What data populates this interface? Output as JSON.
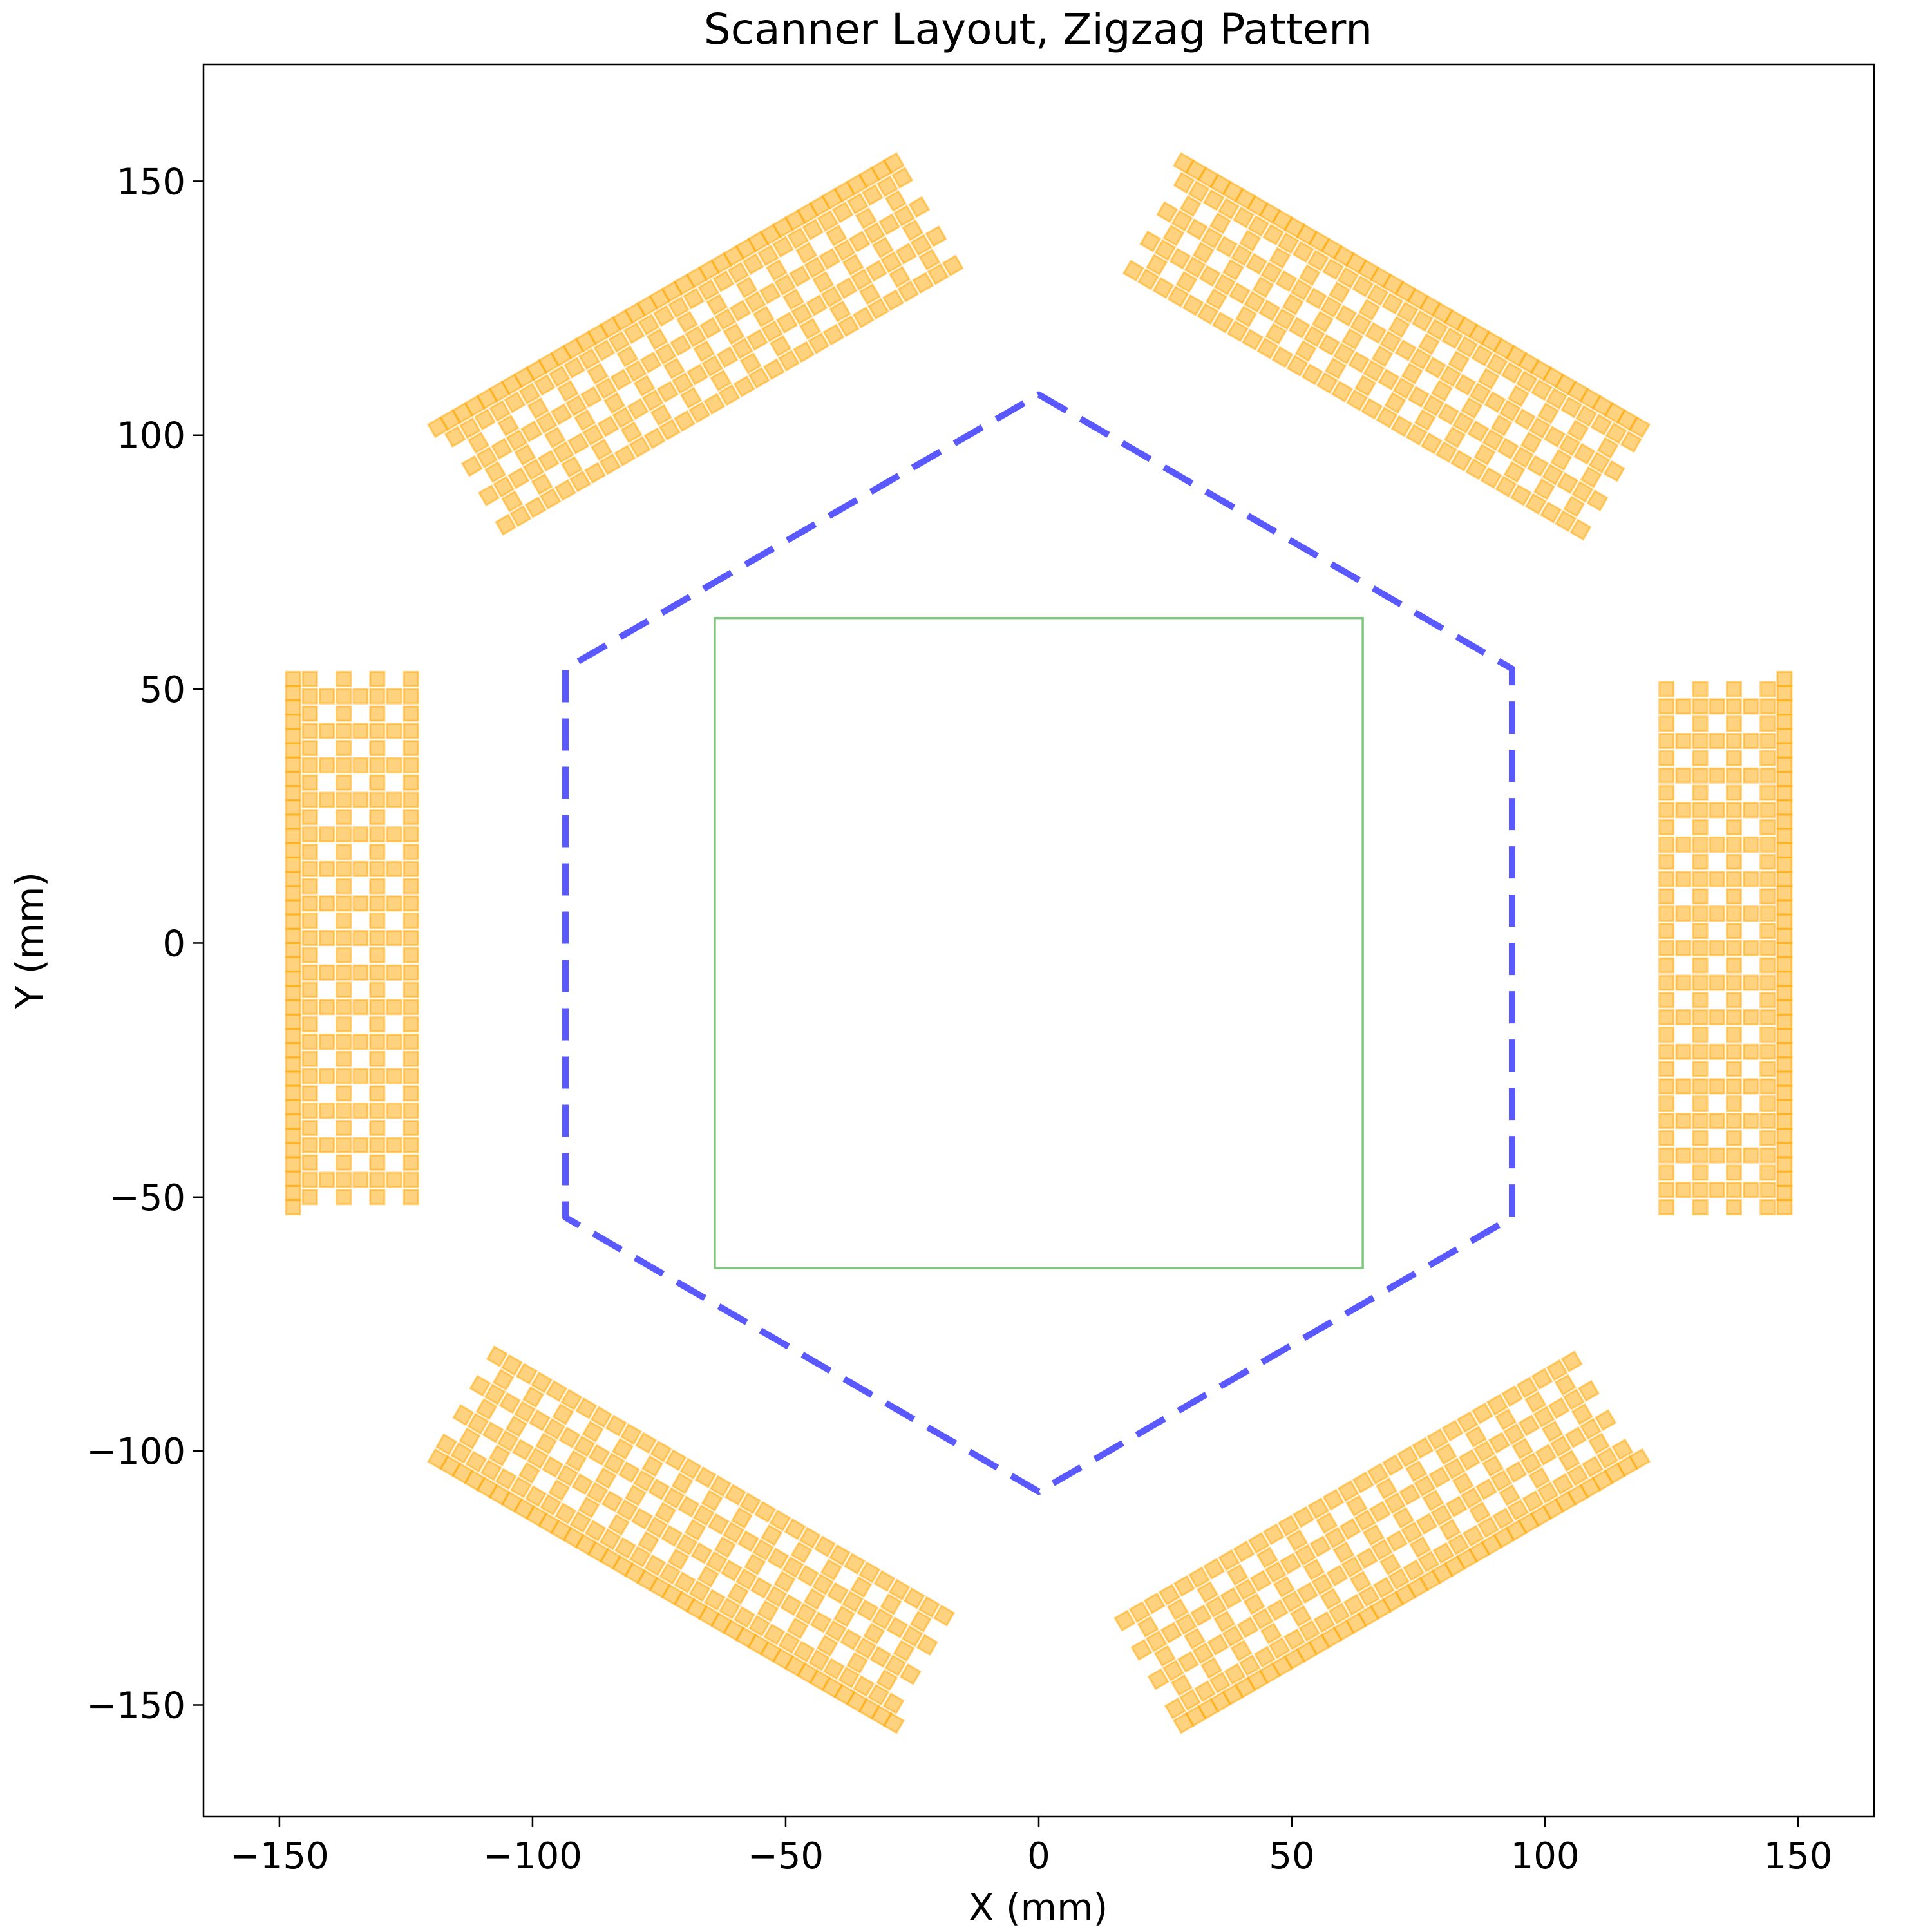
{
  "chart_data": {
    "type": "scatter",
    "title": "Scanner Layout, Zigzag Pattern",
    "xlabel": "X (mm)",
    "ylabel": "Y (mm)",
    "xlim": [
      -165,
      165
    ],
    "ylim": [
      -172,
      173
    ],
    "xticks": [
      -150,
      -100,
      -50,
      0,
      50,
      100,
      150
    ],
    "yticks": [
      -150,
      -100,
      -50,
      0,
      50,
      100,
      150
    ],
    "grid": false,
    "colors": {
      "modules": "#ffa500",
      "ring": "#0000ff",
      "fov": "#2ca02c"
    },
    "hexagon": {
      "style": "dashed",
      "vertices": [
        [
          0,
          108
        ],
        [
          93.5,
          54
        ],
        [
          93.5,
          -54
        ],
        [
          0,
          -108
        ],
        [
          -93.5,
          -54
        ],
        [
          -93.5,
          54
        ]
      ]
    },
    "fov_square": {
      "x": [
        -64,
        64
      ],
      "y": [
        -64,
        64
      ]
    },
    "detector_modules": {
      "count": 6,
      "element_size_mm": 2.8,
      "inner_radius_mm": 124,
      "column_spacing_mm": 3.33,
      "columns": 8,
      "row_pitch_mm": 6.8,
      "rows_per_column": 16,
      "face_span_mm": [
        -52,
        52
      ],
      "orientations_deg": [
        0,
        60,
        120,
        180,
        240,
        300
      ]
    }
  }
}
